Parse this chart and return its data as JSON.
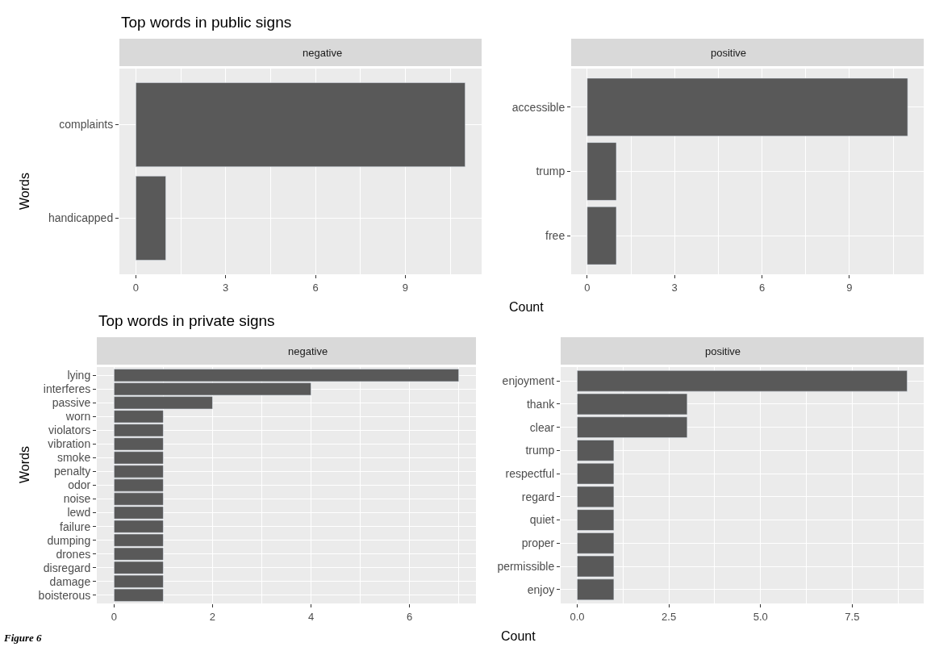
{
  "chart_data": [
    {
      "type": "bar",
      "orientation": "horizontal",
      "title": "Top words in public signs",
      "subtitle": "negative",
      "xlabel": "Count",
      "ylabel": "Words",
      "categories": [
        "complaints",
        "handicapped"
      ],
      "values": [
        11,
        1
      ],
      "color": "#595959",
      "xlim": [
        -0.55,
        11.55
      ],
      "xticks": [
        0,
        3,
        6,
        9
      ],
      "grid": true
    },
    {
      "type": "bar",
      "orientation": "horizontal",
      "subtitle": "positive",
      "categories": [
        "accessible",
        "trump",
        "free"
      ],
      "values": [
        11,
        1,
        1
      ],
      "color": "#595959",
      "xlim": [
        -0.55,
        11.55
      ],
      "xticks": [
        0,
        3,
        6,
        9
      ],
      "grid": true
    },
    {
      "type": "bar",
      "orientation": "horizontal",
      "title": "Top words in private signs",
      "subtitle": "negative",
      "xlabel": "Count",
      "ylabel": "Words",
      "categories": [
        "lying",
        "interferes",
        "passive",
        "worn",
        "violators",
        "vibration",
        "smoke",
        "penalty",
        "odor",
        "noise",
        "lewd",
        "failure",
        "dumping",
        "drones",
        "disregard",
        "damage",
        "boisterous"
      ],
      "values": [
        7,
        4,
        2,
        1,
        1,
        1,
        1,
        1,
        1,
        1,
        1,
        1,
        1,
        1,
        1,
        1,
        1
      ],
      "color": "#595959",
      "xlim": [
        -0.35,
        7.35
      ],
      "xticks": [
        0,
        2,
        4,
        6
      ],
      "grid": true,
      "annotations": [
        "Figure 6"
      ]
    },
    {
      "type": "bar",
      "orientation": "horizontal",
      "subtitle": "positive",
      "categories": [
        "enjoyment",
        "thank",
        "clear",
        "trump",
        "respectful",
        "regard",
        "quiet",
        "proper",
        "permissible",
        "enjoy"
      ],
      "values": [
        9,
        3,
        3,
        1,
        1,
        1,
        1,
        1,
        1,
        1
      ],
      "color": "#595959",
      "xlim": [
        -0.45,
        9.45
      ],
      "xticks": [
        {
          "value": 0,
          "label": "0.0"
        },
        {
          "value": 2.5,
          "label": "2.5"
        },
        {
          "value": 5,
          "label": "5.0"
        },
        {
          "value": 7.5,
          "label": "7.5"
        }
      ],
      "grid": true
    }
  ]
}
